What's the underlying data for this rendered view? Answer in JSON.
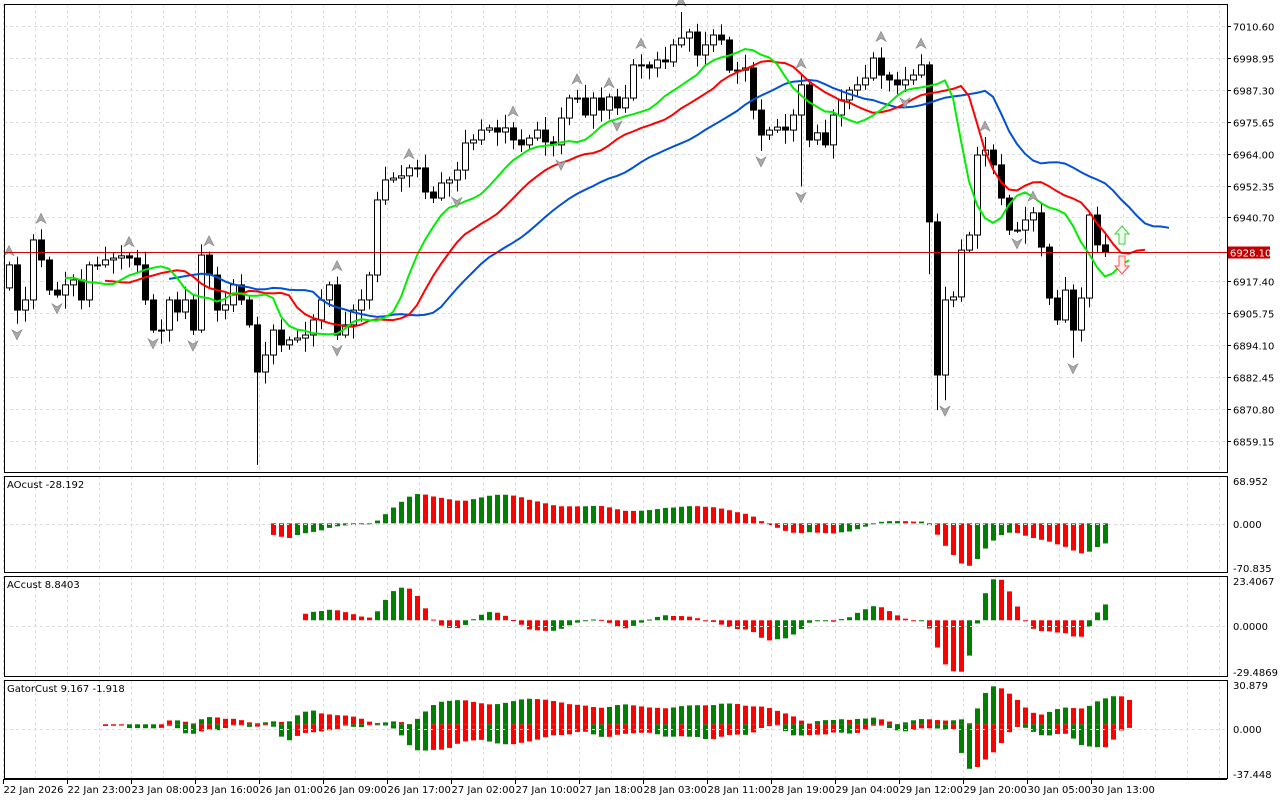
{
  "chart_data": {
    "type": "candlestick",
    "symbol_current_price": "6928.10",
    "colors": {
      "bull_body": "#ffffff",
      "bear_body": "#000000",
      "jaw": "#0050d8",
      "teeth": "#ff0000",
      "lips": "#00ee00",
      "ao_up": "#008000",
      "ao_down": "#ff0000",
      "price_line": "#d00000",
      "grid": "#dcdcdc"
    },
    "price_axis": {
      "range": [
        6847.8,
        7018.63
      ],
      "ticks": [
        "7010.60",
        "6998.95",
        "6987.30",
        "6975.65",
        "6964.00",
        "6952.35",
        "6940.70",
        "6917.40",
        "6905.75",
        "6894.10",
        "6882.45",
        "6870.80",
        "6859.15"
      ]
    },
    "time_axis": [
      "22 Jan 2026",
      "22 Jan 23:00",
      "23 Jan 08:00",
      "23 Jan 16:00",
      "26 Jan 01:00",
      "26 Jan 09:00",
      "26 Jan 17:00",
      "27 Jan 02:00",
      "27 Jan 10:00",
      "27 Jan 18:00",
      "28 Jan 03:00",
      "28 Jan 11:00",
      "28 Jan 19:00",
      "29 Jan 04:00",
      "29 Jan 12:00",
      "29 Jan 20:00",
      "30 Jan 05:00",
      "30 Jan 13:00"
    ],
    "first_open": 6915.0,
    "closes": [
      6923.4,
      6906.9,
      6910.6,
      6932.5,
      6925.2,
      6914.2,
      6912.4,
      6916.1,
      6917.9,
      6910.6,
      6923.4,
      6923.4,
      6925.2,
      6925.9,
      6926.7,
      6925.9,
      6923.4,
      6910.6,
      6899.6,
      6899.6,
      6910.6,
      6906.2,
      6910.6,
      6899.6,
      6927.0,
      6919.7,
      6906.9,
      6908.8,
      6916.1,
      6910.6,
      6901.5,
      6884.3,
      6890.5,
      6899.6,
      6894.2,
      6896.0,
      6896.7,
      6897.8,
      6903.3,
      6910.6,
      6916.1,
      6897.8,
      6901.5,
      6906.9,
      6910.6,
      6919.7,
      6947.1,
      6954.4,
      6955.1,
      6955.9,
      6958.8,
      6958.8,
      6950.0,
      6947.8,
      6953.3,
      6954.4,
      6958.0,
      6967.9,
      6969.0,
      6972.6,
      6973.4,
      6971.9,
      6973.4,
      6969.0,
      6967.2,
      6969.7,
      6972.6,
      6968.3,
      6967.2,
      6977.0,
      6984.3,
      6984.3,
      6978.1,
      6984.3,
      6979.9,
      6984.7,
      6980.7,
      6984.3,
      6996.4,
      6996.4,
      6995.3,
      6998.2,
      6997.5,
      7003.7,
      7006.2,
      7008.4,
      7000.0,
      7003.7,
      7007.3,
      7005.5,
      6994.5,
      6994.5,
      6995.3,
      6979.9,
      6970.8,
      6972.6,
      6973.7,
      6972.6,
      6978.1,
      6989.1,
      6969.0,
      6971.6,
      6967.2,
      6978.1,
      6983.6,
      6987.2,
      6989.1,
      6991.6,
      6998.9,
      6992.7,
      6990.9,
      6989.1,
      6990.9,
      6992.7,
      6996.4,
      6939.1,
      6883.2,
      6910.6,
      6911.7,
      6928.8,
      6934.3,
      6963.5,
      6965.3,
      6959.9,
      6947.8,
      6936.1,
      6936.1,
      6939.8,
      6942.4,
      6929.9,
      6911.3,
      6903.3,
      6914.2,
      6899.6,
      6911.3,
      6941.6,
      6930.7,
      6928.1
    ],
    "extremes": {
      "31": {
        "l": 6850.4
      },
      "84": {
        "h": 7015.7
      },
      "115": {
        "l": 6920.0
      },
      "116": {
        "l": 6870.4
      },
      "117": {
        "l": 6874.0
      },
      "133": {
        "l": 6889.5
      },
      "99": {
        "l": 6952.0
      },
      "94": {
        "l": 6965.0
      }
    },
    "fractals_up": [
      0,
      4,
      15,
      25,
      41,
      50,
      63,
      71,
      75,
      79,
      84,
      99,
      109,
      114,
      122,
      128
    ],
    "fractals_down": [
      1,
      6,
      18,
      23,
      41,
      56,
      69,
      76,
      94,
      99,
      112,
      117,
      126,
      133
    ],
    "indicators": {
      "ao": {
        "legend": "AOcust -28.192",
        "max_label": "68.952",
        "zero_label": "0.000",
        "min_label": "-70.835",
        "range": [
          -70.835,
          68.952
        ]
      },
      "ac": {
        "legend": "ACcust 8.8403",
        "max_label": "23.4067",
        "zero_label": "0.0000",
        "min_label": "-29.4869",
        "range": [
          -29.4869,
          23.4067
        ]
      },
      "gator": {
        "legend": "GatorCust 9.167 -1.918",
        "max_label": "30.879",
        "zero_label": "0.000",
        "min_label": "-37.448",
        "range": [
          -37.448,
          30.879
        ]
      }
    },
    "signals": {
      "buy_arrow": "up-arrow-outline",
      "sell_arrow": "down-arrow-outline"
    }
  }
}
